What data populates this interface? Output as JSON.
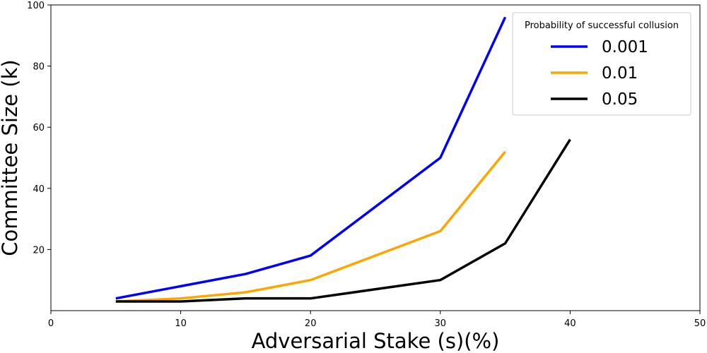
{
  "chart_data": {
    "type": "line",
    "title": "",
    "xlabel": "Adversarial Stake (s)(%)",
    "ylabel": "Committee Size (k)",
    "xlim": [
      0,
      50
    ],
    "ylim": [
      0,
      100
    ],
    "xticks": [
      0,
      10,
      20,
      30,
      40,
      50
    ],
    "yticks": [
      20,
      40,
      60,
      80,
      100
    ],
    "grid": false,
    "legend": {
      "title": "Probability of successful collusion",
      "placement": "top-right"
    },
    "series": [
      {
        "name": "0.001",
        "color": "#0000ff",
        "x": [
          5,
          15,
          20,
          30,
          35
        ],
        "y": [
          4,
          12,
          18,
          50,
          96
        ]
      },
      {
        "name": "0.01",
        "color": "#ffa500",
        "x": [
          5,
          10,
          15,
          20,
          30,
          35
        ],
        "y": [
          3,
          4,
          6,
          10,
          26,
          52
        ]
      },
      {
        "name": "0.05",
        "color": "#000000",
        "x": [
          5,
          10,
          15,
          20,
          30,
          35,
          40
        ],
        "y": [
          3,
          3,
          4,
          4,
          10,
          22,
          56
        ]
      }
    ]
  }
}
